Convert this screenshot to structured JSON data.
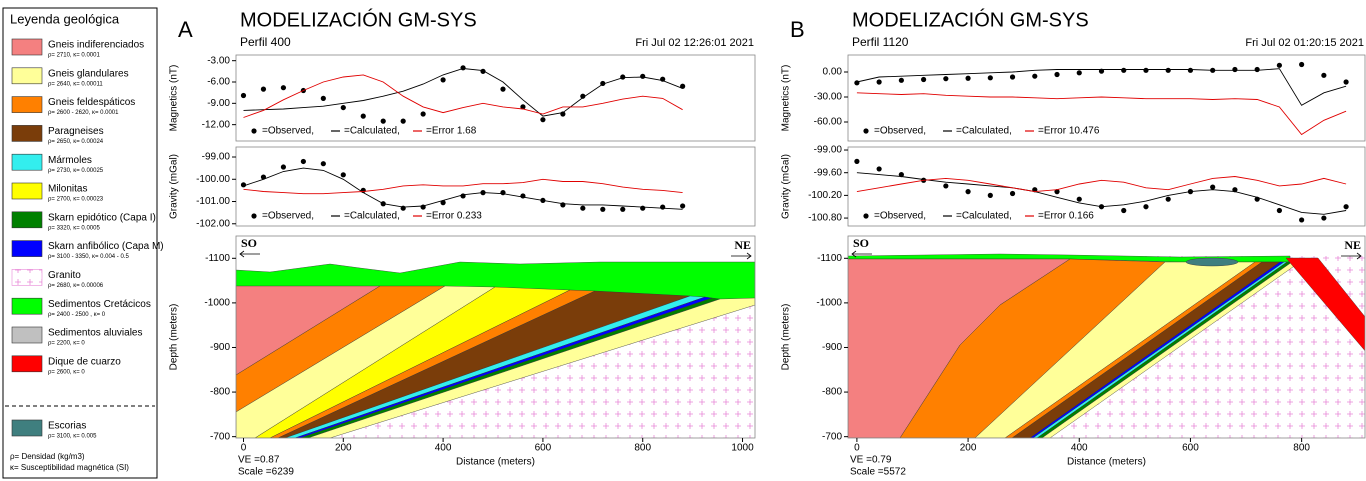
{
  "legend": {
    "title": "Leyenda geológica",
    "items": [
      {
        "name": "Gneis indiferenciados",
        "props": "ρ= 2710, κ= 0.0001",
        "color": "#f48080"
      },
      {
        "name": "Gneis glandulares",
        "props": "ρ= 2640, κ= 0.00011",
        "color": "#ffff99"
      },
      {
        "name": "Gneis feldespáticos",
        "props": "ρ= 2600 - 2620, κ= 0.0001",
        "color": "#ff8000"
      },
      {
        "name": "Paragneises",
        "props": "ρ= 2650, κ= 0.00024",
        "color": "#7a3d0a"
      },
      {
        "name": "Mármoles",
        "props": "ρ= 2730, κ= 0.00025",
        "color": "#33eeee"
      },
      {
        "name": "Milonitas",
        "props": "ρ= 2700, κ= 0.00023",
        "color": "#ffff00"
      },
      {
        "name": "Skarn epidótico (Capa I)",
        "props": "ρ= 3320, κ= 0.0005",
        "color": "#008000"
      },
      {
        "name": "Skarn anfibólico (Capa M)",
        "props": "ρ= 3100 - 3350, κ= 0.004 - 0.5",
        "color": "#0000ff"
      },
      {
        "name": "Granito",
        "props": "ρ= 2680, κ= 0.00006",
        "color": "#e888d8",
        "pattern": true
      },
      {
        "name": "Sedimentos Cretácicos",
        "props": "ρ= 2400 - 2500 , κ= 0",
        "color": "#00ff00"
      },
      {
        "name": "Sedimentos aluviales",
        "props": "ρ= 2200, κ= 0",
        "color": "#c0c0c0"
      },
      {
        "name": "Dique de cuarzo",
        "props": "ρ= 2600, κ= 0",
        "color": "#ff0000"
      },
      {
        "name": "Escorias",
        "props": "ρ= 3100, κ= 0.005",
        "color": "#3f7f7f"
      }
    ],
    "notes": [
      "ρ= Densidad (kg/m3)",
      "κ= Susceptibilidad magnética (SI)"
    ]
  },
  "panels": [
    {
      "letter": "A",
      "title": "MODELIZACIÓN GM-SYS",
      "profile": "Perfil 400",
      "date": "Fri Jul 02 12:26:01 2021"
    },
    {
      "letter": "B",
      "title": "MODELIZACIÓN GM-SYS",
      "profile": "Perfil 1120",
      "date": "Fri Jul 02 01:20:15 2021"
    }
  ],
  "chart_data": [
    {
      "type": "line",
      "y_label": "Magnetics (nT)",
      "xlim": [
        -15,
        1025
      ],
      "ylim": [
        -14.3,
        -2.2
      ],
      "yticks": [
        {
          "value": -3,
          "label": "-3.00"
        },
        {
          "value": -6,
          "label": "-6.00"
        },
        {
          "value": -9,
          "label": "-9.00"
        },
        {
          "value": -12,
          "label": "-12.00"
        }
      ],
      "x": [
        0,
        40,
        80,
        120,
        160,
        200,
        240,
        280,
        320,
        360,
        400,
        440,
        480,
        520,
        560,
        600,
        640,
        680,
        720,
        760,
        800,
        840,
        880
      ],
      "series": [
        {
          "name": "=Observed,",
          "color": "#000000",
          "style": "dots",
          "values": [
            -7.9,
            -7.0,
            -6.8,
            -7.2,
            -8.3,
            -9.6,
            -10.8,
            -11.5,
            -11.5,
            -10.5,
            -5.7,
            -4.0,
            -4.5,
            -7.0,
            -9.5,
            -11.3,
            -10.5,
            -8.0,
            -6.2,
            -5.3,
            -5.2,
            -5.6,
            -6.6
          ]
        },
        {
          "name": "=Calculated,",
          "color": "#000000",
          "style": "line",
          "values": [
            -10.0,
            -9.9,
            -9.8,
            -9.6,
            -9.4,
            -9.0,
            -8.6,
            -8.0,
            -7.3,
            -6.3,
            -5.0,
            -4.1,
            -4.4,
            -6.0,
            -8.5,
            -10.8,
            -10.3,
            -8.2,
            -6.3,
            -5.4,
            -5.3,
            -5.8,
            -6.9
          ]
        },
        {
          "name": "=Error 1.68",
          "color": "#e00000",
          "style": "line",
          "values": [
            -11.0,
            -10.0,
            -8.5,
            -7.2,
            -6.0,
            -5.3,
            -5.0,
            -6.0,
            -8.0,
            -9.5,
            -10.3,
            -9.6,
            -9.0,
            -9.5,
            -9.8,
            -10.5,
            -9.5,
            -9.5,
            -9.0,
            -8.4,
            -8.0,
            -8.3,
            -9.9
          ]
        }
      ]
    },
    {
      "type": "line",
      "y_label": "Gravity (mGal)",
      "xlim": [
        -15,
        1025
      ],
      "ylim": [
        -102.1,
        -98.55
      ],
      "yticks": [
        {
          "value": -99,
          "label": "-99.00"
        },
        {
          "value": -100,
          "label": "-100.00"
        },
        {
          "value": -101,
          "label": "-101.00"
        },
        {
          "value": -102,
          "label": "-102.00"
        }
      ],
      "x": [
        0,
        40,
        80,
        120,
        160,
        200,
        240,
        280,
        320,
        360,
        400,
        440,
        480,
        520,
        560,
        600,
        640,
        680,
        720,
        760,
        800,
        840,
        880
      ],
      "series": [
        {
          "name": "=Observed,",
          "color": "#000000",
          "style": "dots",
          "values": [
            -100.25,
            -99.9,
            -99.45,
            -99.2,
            -99.3,
            -99.8,
            -100.5,
            -101.1,
            -101.3,
            -101.25,
            -101.05,
            -100.75,
            -100.6,
            -100.6,
            -100.75,
            -100.95,
            -101.15,
            -101.3,
            -101.35,
            -101.35,
            -101.3,
            -101.25,
            -101.2
          ]
        },
        {
          "name": "=Calculated,",
          "color": "#000000",
          "style": "line",
          "values": [
            -100.3,
            -100.0,
            -99.65,
            -99.5,
            -99.6,
            -100.0,
            -100.6,
            -101.1,
            -101.25,
            -101.2,
            -100.95,
            -100.7,
            -100.6,
            -100.65,
            -100.8,
            -100.95,
            -101.1,
            -101.15,
            -101.15,
            -101.2,
            -101.25,
            -101.3,
            -101.35
          ]
        },
        {
          "name": "=Error 0.233",
          "color": "#e00000",
          "style": "line",
          "values": [
            -100.45,
            -100.55,
            -100.6,
            -100.65,
            -100.65,
            -100.6,
            -100.55,
            -100.45,
            -100.3,
            -100.25,
            -100.3,
            -100.3,
            -100.2,
            -100.2,
            -100.15,
            -100.0,
            -100.1,
            -100.1,
            -100.2,
            -100.35,
            -100.45,
            -100.5,
            -100.6
          ]
        }
      ]
    },
    {
      "type": "section",
      "x_label": "Distance (meters)",
      "y_label": "Depth (meters)",
      "xlim": [
        -15,
        1025
      ],
      "ylim": [
        -697,
        -1150
      ],
      "xticks": [
        0,
        200,
        400,
        600,
        800,
        1000
      ],
      "yticks": [
        -1100,
        -1000,
        -900,
        -800,
        -700
      ],
      "left_label": "SO",
      "right_label": "NE",
      "ve": "VE =0.87",
      "scale": "Scale =6239"
    },
    {
      "type": "line",
      "y_label": "Magnetics (nT)",
      "xlim": [
        -16,
        914
      ],
      "ylim": [
        -82.8,
        20.4
      ],
      "yticks": [
        {
          "value": 0,
          "label": "0.00"
        },
        {
          "value": -30,
          "label": "-30.00"
        },
        {
          "value": -60,
          "label": "-60.00"
        }
      ],
      "x": [
        0,
        40,
        80,
        120,
        160,
        200,
        240,
        280,
        320,
        360,
        400,
        440,
        480,
        520,
        560,
        600,
        640,
        680,
        720,
        760,
        800,
        840,
        880
      ],
      "series": [
        {
          "name": "=Observed,",
          "color": "#000000",
          "style": "dots",
          "values": [
            -13,
            -12,
            -10,
            -9,
            -8,
            -7.5,
            -7,
            -6,
            -5,
            -3,
            -1,
            1,
            2,
            2,
            2,
            2,
            2,
            3,
            3,
            8,
            9,
            -4,
            -12
          ]
        },
        {
          "name": "=Calculated,",
          "color": "#000000",
          "style": "line",
          "values": [
            -12,
            -6,
            -5,
            -4,
            -3,
            -2,
            -1,
            0,
            2,
            3,
            3,
            3,
            3,
            3,
            3,
            3,
            2,
            2,
            2,
            4,
            -40,
            -25,
            -17
          ]
        },
        {
          "name": "=Error 10.476",
          "color": "#e00000",
          "style": "line",
          "values": [
            -25,
            -26,
            -27,
            -26,
            -28,
            -29,
            -30,
            -30,
            -31,
            -32,
            -31,
            -30,
            -31,
            -32,
            -32,
            -32,
            -33,
            -32,
            -33,
            -42,
            -75,
            -58,
            -47
          ]
        }
      ]
    },
    {
      "type": "line",
      "y_label": "Gravity (mGal)",
      "xlim": [
        -16,
        914
      ],
      "ylim": [
        -101.01,
        -98.92
      ],
      "yticks": [
        {
          "value": -99,
          "label": "-99.00"
        },
        {
          "value": -99.6,
          "label": "-99.60"
        },
        {
          "value": -100.2,
          "label": "-100.20"
        },
        {
          "value": -100.8,
          "label": "-100.80"
        }
      ],
      "x": [
        0,
        40,
        80,
        120,
        160,
        200,
        240,
        280,
        320,
        360,
        400,
        440,
        480,
        520,
        560,
        600,
        640,
        680,
        720,
        760,
        800,
        840,
        880
      ],
      "series": [
        {
          "name": "=Observed,",
          "color": "#000000",
          "style": "dots",
          "values": [
            -99.3,
            -99.5,
            -99.65,
            -99.8,
            -99.95,
            -100.1,
            -100.2,
            -100.15,
            -100.05,
            -100.1,
            -100.3,
            -100.5,
            -100.6,
            -100.5,
            -100.3,
            -100.1,
            -99.98,
            -100.05,
            -100.3,
            -100.6,
            -100.85,
            -100.8,
            -100.5
          ]
        },
        {
          "name": "=Calculated,",
          "color": "#000000",
          "style": "line",
          "values": [
            -99.6,
            -99.65,
            -99.7,
            -99.78,
            -99.85,
            -99.9,
            -99.95,
            -100.0,
            -100.1,
            -100.25,
            -100.4,
            -100.5,
            -100.45,
            -100.35,
            -100.2,
            -100.1,
            -100.05,
            -100.1,
            -100.25,
            -100.45,
            -100.65,
            -100.7,
            -100.6
          ]
        },
        {
          "name": "=Error 0.166",
          "color": "#e00000",
          "style": "line",
          "values": [
            -100.1,
            -100.0,
            -99.9,
            -99.8,
            -99.75,
            -99.8,
            -99.9,
            -100.0,
            -100.1,
            -100.05,
            -99.9,
            -99.8,
            -99.85,
            -100.0,
            -100.05,
            -99.9,
            -99.75,
            -99.7,
            -99.8,
            -99.95,
            -99.9,
            -99.75,
            -99.9
          ]
        }
      ]
    },
    {
      "type": "section",
      "x_label": "Distance (meters)",
      "y_label": "Depth (meters)",
      "xlim": [
        -16,
        914
      ],
      "ylim": [
        -697,
        -1150
      ],
      "xticks": [
        0,
        200,
        400,
        600,
        800
      ],
      "yticks": [
        -1100,
        -1000,
        -900,
        -800,
        -700
      ],
      "left_label": "SO",
      "right_label": "NE",
      "ve": "VE =0.79",
      "scale": "Scale =5572"
    }
  ]
}
